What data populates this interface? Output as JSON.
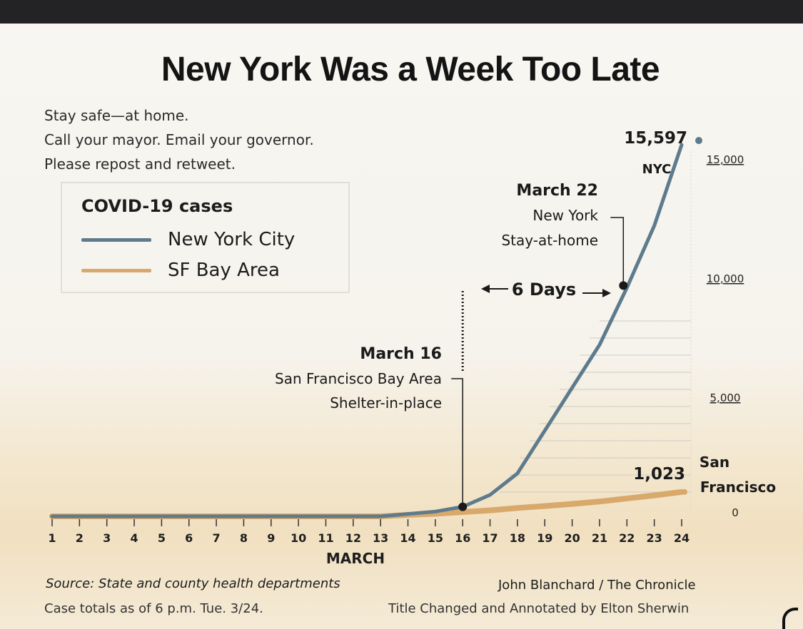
{
  "chart_data": {
    "type": "line",
    "title": "New York Was a Week Too Late",
    "intro_lines": [
      "Stay safe—at home.",
      "Call your mayor. Email your governor.",
      "Please repost and retweet."
    ],
    "legend_title": "COVID-19 cases",
    "xlabel": "MARCH",
    "x": [
      1,
      2,
      3,
      4,
      5,
      6,
      7,
      8,
      9,
      10,
      11,
      12,
      13,
      14,
      15,
      16,
      17,
      18,
      19,
      20,
      21,
      22,
      23,
      24
    ],
    "xlim": [
      1,
      24
    ],
    "ylim": [
      0,
      16000
    ],
    "y_ticks": [
      {
        "value": 15000,
        "label": "15,000"
      },
      {
        "value": 10000,
        "label": "10,000"
      },
      {
        "value": 5000,
        "label": "5,000"
      },
      {
        "value": 0,
        "label": "0"
      }
    ],
    "series": [
      {
        "name": "New York City",
        "color": "#5d7b8c",
        "x": [
          1,
          2,
          3,
          4,
          5,
          6,
          7,
          8,
          9,
          10,
          11,
          12,
          13,
          14,
          15,
          16,
          17,
          18,
          19,
          20,
          21,
          22,
          23,
          24
        ],
        "values": [
          0,
          0,
          0,
          0,
          0,
          0,
          0,
          0,
          0,
          0,
          0,
          0,
          0,
          100,
          200,
          400,
          900,
          1800,
          3600,
          5400,
          7200,
          9600,
          12200,
          15597
        ]
      },
      {
        "name": "SF Bay Area",
        "color": "#d9a86b",
        "x": [
          1,
          2,
          3,
          4,
          5,
          6,
          7,
          8,
          9,
          10,
          11,
          12,
          13,
          14,
          15,
          16,
          17,
          18,
          19,
          20,
          21,
          22,
          23,
          24
        ],
        "values": [
          0,
          0,
          0,
          0,
          0,
          0,
          0,
          0,
          0,
          0,
          0,
          0,
          0,
          60,
          110,
          180,
          250,
          350,
          430,
          520,
          620,
          750,
          880,
          1023
        ]
      }
    ],
    "end_labels": [
      {
        "value": "15,597",
        "tag": "NYC"
      },
      {
        "value": "1,023",
        "tag_lines": [
          "San",
          "Francisco"
        ]
      }
    ],
    "annotations": [
      {
        "x": 16,
        "y": 400,
        "lines": [
          "March 16",
          "San Francisco Bay Area",
          "Shelter-in-place"
        ]
      },
      {
        "x": 22,
        "y": 9600,
        "lines": [
          "March 22",
          "New York",
          "Stay-at-home"
        ]
      }
    ],
    "span_label": "6 Days",
    "grid_rows": 11
  },
  "footer": {
    "source": "Source: State and county health departments",
    "case_totals": "Case totals as of 6 p.m. Tue. 3/24.",
    "credit": "John Blanchard / The Chronicle",
    "annotated_by": "Title Changed and Annotated by Elton Sherwin"
  }
}
